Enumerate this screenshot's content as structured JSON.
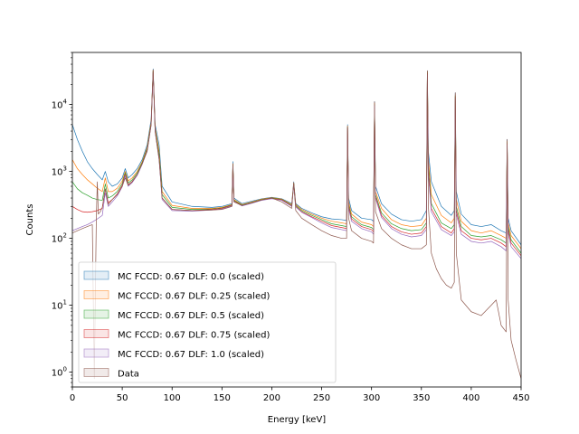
{
  "chart_data": {
    "type": "line",
    "title": "",
    "xlabel": "Energy [keV]",
    "ylabel": "Counts",
    "xlim": [
      0,
      450
    ],
    "ylim": [
      0.6,
      60000
    ],
    "yscale": "log",
    "grid": false,
    "legend_placement": "lower-left",
    "x_ticks": [
      0,
      50,
      100,
      150,
      200,
      250,
      300,
      350,
      400,
      450
    ],
    "x_tick_labels": [
      "0",
      "50",
      "100",
      "150",
      "200",
      "250",
      "300",
      "350",
      "400",
      "450"
    ],
    "y_ticks": [
      1,
      10,
      100,
      1000,
      10000
    ],
    "y_tick_labels": [
      {
        "base": "10",
        "exp": "0"
      },
      {
        "base": "10",
        "exp": "1"
      },
      {
        "base": "10",
        "exp": "2"
      },
      {
        "base": "10",
        "exp": "3"
      },
      {
        "base": "10",
        "exp": "4"
      }
    ],
    "series": [
      {
        "name": "MC FCCD: 0.67 DLF: 0.0 (scaled)",
        "color": "#1f77b4",
        "x": [
          0,
          5,
          10,
          15,
          20,
          25,
          30,
          33,
          36,
          40,
          45,
          50,
          53,
          56,
          60,
          65,
          70,
          75,
          79,
          81,
          83,
          87,
          90,
          100,
          120,
          140,
          150,
          160,
          161,
          162,
          170,
          180,
          190,
          200,
          210,
          220,
          222,
          224,
          230,
          240,
          250,
          260,
          270,
          275,
          276,
          277,
          280,
          290,
          300,
          302,
          303,
          304,
          310,
          320,
          330,
          340,
          350,
          355,
          356,
          357,
          360,
          370,
          380,
          383,
          384,
          385,
          390,
          400,
          410,
          420,
          430,
          435,
          436,
          437,
          440,
          450
        ],
        "y": [
          5000,
          3000,
          2000,
          1400,
          1100,
          900,
          750,
          1000,
          700,
          600,
          650,
          800,
          1100,
          800,
          900,
          1100,
          1500,
          2500,
          6000,
          34000,
          5000,
          2500,
          600,
          350,
          300,
          290,
          300,
          330,
          1400,
          400,
          330,
          360,
          390,
          410,
          390,
          330,
          700,
          330,
          280,
          240,
          210,
          195,
          190,
          185,
          5000,
          400,
          260,
          200,
          190,
          180,
          11000,
          600,
          330,
          230,
          190,
          180,
          190,
          260,
          32000,
          2000,
          700,
          300,
          220,
          260,
          15000,
          500,
          230,
          160,
          150,
          160,
          130,
          120,
          3000,
          200,
          130,
          80
        ]
      },
      {
        "name": "MC FCCD: 0.67 DLF: 0.25 (scaled)",
        "color": "#ff7f0e",
        "x": [
          0,
          5,
          10,
          15,
          20,
          25,
          30,
          33,
          36,
          40,
          45,
          50,
          53,
          56,
          60,
          65,
          70,
          75,
          79,
          81,
          83,
          87,
          90,
          100,
          120,
          140,
          150,
          160,
          161,
          162,
          170,
          180,
          190,
          200,
          210,
          220,
          222,
          224,
          230,
          240,
          250,
          260,
          270,
          275,
          276,
          277,
          280,
          290,
          300,
          302,
          303,
          304,
          310,
          320,
          330,
          340,
          350,
          355,
          356,
          357,
          360,
          370,
          380,
          383,
          384,
          385,
          390,
          400,
          410,
          420,
          430,
          435,
          436,
          437,
          440,
          450
        ],
        "y": [
          1500,
          1100,
          900,
          750,
          650,
          560,
          500,
          800,
          500,
          500,
          560,
          720,
          1000,
          720,
          800,
          1000,
          1400,
          2300,
          5500,
          33000,
          4500,
          2000,
          500,
          310,
          280,
          280,
          290,
          320,
          1300,
          380,
          320,
          350,
          385,
          405,
          385,
          320,
          680,
          320,
          270,
          230,
          200,
          180,
          170,
          165,
          4800,
          350,
          230,
          175,
          160,
          150,
          10500,
          500,
          280,
          190,
          160,
          150,
          155,
          200,
          31000,
          1500,
          450,
          220,
          170,
          200,
          14000,
          380,
          180,
          130,
          120,
          130,
          110,
          100,
          2800,
          170,
          110,
          70
        ]
      },
      {
        "name": "MC FCCD: 0.67 DLF: 0.5 (scaled)",
        "color": "#2ca02c",
        "x": [
          0,
          5,
          10,
          15,
          20,
          25,
          30,
          33,
          36,
          40,
          45,
          50,
          53,
          56,
          60,
          65,
          70,
          75,
          79,
          81,
          83,
          87,
          90,
          100,
          120,
          140,
          150,
          160,
          161,
          162,
          170,
          180,
          190,
          200,
          210,
          220,
          222,
          224,
          230,
          240,
          250,
          260,
          270,
          275,
          276,
          277,
          280,
          290,
          300,
          302,
          303,
          304,
          310,
          320,
          330,
          340,
          350,
          355,
          356,
          357,
          360,
          370,
          380,
          383,
          384,
          385,
          390,
          400,
          410,
          420,
          430,
          435,
          436,
          437,
          440,
          450
        ],
        "y": [
          700,
          550,
          480,
          440,
          400,
          380,
          370,
          650,
          400,
          430,
          500,
          660,
          950,
          670,
          750,
          950,
          1350,
          2200,
          5200,
          32000,
          4200,
          1800,
          450,
          290,
          270,
          275,
          285,
          315,
          1250,
          370,
          315,
          345,
          380,
          400,
          380,
          310,
          660,
          310,
          260,
          220,
          190,
          165,
          155,
          150,
          4600,
          320,
          210,
          160,
          145,
          135,
          10000,
          450,
          240,
          165,
          140,
          130,
          135,
          170,
          30000,
          1200,
          330,
          170,
          140,
          160,
          13500,
          300,
          150,
          110,
          105,
          110,
          95,
          85,
          2700,
          150,
          95,
          60
        ]
      },
      {
        "name": "MC FCCD: 0.67 DLF: 0.75 (scaled)",
        "color": "#d62728",
        "x": [
          0,
          5,
          10,
          15,
          20,
          25,
          30,
          33,
          36,
          40,
          45,
          50,
          53,
          56,
          60,
          65,
          70,
          75,
          79,
          81,
          83,
          87,
          90,
          100,
          120,
          140,
          150,
          160,
          161,
          162,
          170,
          180,
          190,
          200,
          210,
          220,
          222,
          224,
          230,
          240,
          250,
          260,
          270,
          275,
          276,
          277,
          280,
          290,
          300,
          302,
          303,
          304,
          310,
          320,
          330,
          340,
          350,
          355,
          356,
          357,
          360,
          370,
          380,
          383,
          384,
          385,
          390,
          400,
          410,
          420,
          430,
          435,
          436,
          437,
          440,
          450
        ],
        "y": [
          300,
          270,
          250,
          245,
          250,
          260,
          280,
          550,
          340,
          380,
          460,
          620,
          900,
          630,
          710,
          900,
          1300,
          2100,
          5000,
          31000,
          4000,
          1600,
          400,
          270,
          260,
          270,
          280,
          310,
          1200,
          360,
          310,
          340,
          375,
          395,
          375,
          305,
          640,
          300,
          250,
          210,
          180,
          155,
          145,
          140,
          4500,
          300,
          195,
          150,
          135,
          125,
          9800,
          420,
          220,
          150,
          125,
          115,
          120,
          150,
          29000,
          1000,
          280,
          150,
          120,
          140,
          13000,
          260,
          130,
          100,
          95,
          100,
          85,
          75,
          2600,
          135,
          85,
          55
        ]
      },
      {
        "name": "MC FCCD: 0.67 DLF: 1.0 (scaled)",
        "color": "#9467bd",
        "x": [
          0,
          5,
          10,
          15,
          20,
          25,
          30,
          33,
          36,
          40,
          45,
          50,
          53,
          56,
          60,
          65,
          70,
          75,
          79,
          81,
          83,
          87,
          90,
          100,
          120,
          140,
          150,
          160,
          161,
          162,
          170,
          180,
          190,
          200,
          210,
          220,
          222,
          224,
          230,
          240,
          250,
          260,
          270,
          275,
          276,
          277,
          280,
          290,
          300,
          302,
          303,
          304,
          310,
          320,
          330,
          340,
          350,
          355,
          356,
          357,
          360,
          370,
          380,
          383,
          384,
          385,
          390,
          400,
          410,
          420,
          430,
          435,
          436,
          437,
          440,
          450
        ],
        "y": [
          130,
          140,
          150,
          160,
          175,
          195,
          220,
          480,
          300,
          350,
          430,
          590,
          870,
          600,
          680,
          870,
          1270,
          2050,
          4900,
          30000,
          3900,
          1500,
          380,
          260,
          255,
          265,
          275,
          305,
          1180,
          355,
          305,
          335,
          370,
          390,
          370,
          300,
          630,
          295,
          245,
          205,
          170,
          145,
          135,
          130,
          4400,
          280,
          180,
          140,
          125,
          115,
          9600,
          400,
          205,
          140,
          115,
          105,
          110,
          135,
          28000,
          900,
          250,
          135,
          110,
          125,
          12500,
          230,
          115,
          90,
          85,
          90,
          75,
          65,
          2500,
          120,
          75,
          50
        ]
      },
      {
        "name": "Data",
        "color": "#8c564b",
        "x": [
          0,
          5,
          10,
          15,
          20,
          22,
          24,
          25,
          26,
          28,
          30,
          33,
          36,
          40,
          45,
          50,
          53,
          56,
          60,
          65,
          70,
          75,
          79,
          81,
          83,
          87,
          90,
          100,
          120,
          140,
          150,
          160,
          161,
          162,
          170,
          180,
          190,
          200,
          210,
          220,
          222,
          224,
          230,
          240,
          250,
          260,
          270,
          275,
          276,
          277,
          280,
          290,
          300,
          302,
          303,
          304,
          310,
          320,
          330,
          340,
          350,
          355,
          356,
          357,
          360,
          365,
          370,
          375,
          380,
          383,
          384,
          385,
          390,
          400,
          410,
          420,
          425,
          430,
          435,
          436,
          437,
          440,
          445,
          450
        ],
        "y": [
          120,
          130,
          140,
          150,
          160,
          0.8,
          200,
          700,
          230,
          250,
          290,
          550,
          320,
          380,
          450,
          600,
          800,
          620,
          700,
          900,
          1300,
          2000,
          5000,
          33000,
          4000,
          1500,
          400,
          270,
          260,
          265,
          270,
          300,
          1300,
          350,
          310,
          340,
          375,
          400,
          350,
          280,
          680,
          260,
          200,
          160,
          130,
          110,
          100,
          100,
          4700,
          200,
          130,
          100,
          90,
          85,
          11000,
          250,
          140,
          100,
          80,
          70,
          70,
          80,
          32000,
          300,
          60,
          35,
          25,
          20,
          18,
          22,
          15000,
          60,
          12,
          8,
          7,
          10,
          12,
          5,
          4,
          3000,
          12,
          3,
          1.5,
          0.8
        ]
      }
    ]
  }
}
